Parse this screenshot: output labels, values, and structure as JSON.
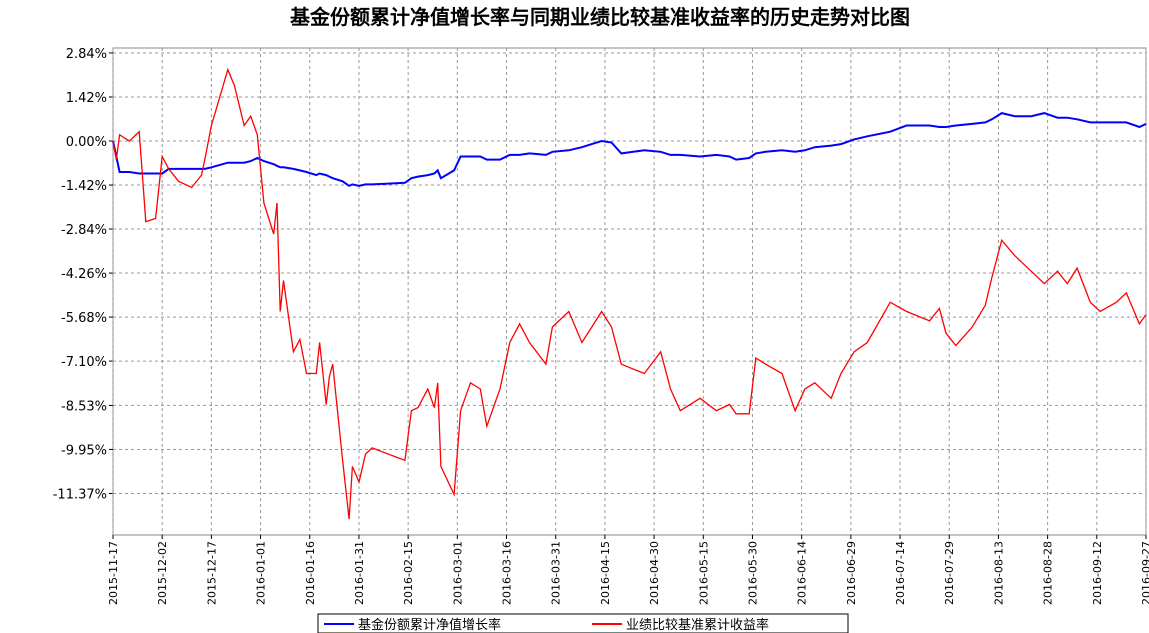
{
  "chart_data": {
    "type": "line",
    "title": "基金份额累计净值增长率与同期业绩比较基准收益率的历史走势对比图",
    "x": [
      "2015-11-17",
      "2015-11-18",
      "2015-11-19",
      "2015-11-22",
      "2015-11-25",
      "2015-11-27",
      "2015-11-30",
      "2015-12-02",
      "2015-12-04",
      "2015-12-07",
      "2015-12-11",
      "2015-12-14",
      "2015-12-15",
      "2015-12-17",
      "2015-12-22",
      "2015-12-24",
      "2015-12-27",
      "2015-12-29",
      "2015-12-31",
      "2016-01-02",
      "2016-01-05",
      "2016-01-06",
      "2016-01-07",
      "2016-01-08",
      "2016-01-11",
      "2016-01-13",
      "2016-01-15",
      "2016-01-18",
      "2016-01-19",
      "2016-01-21",
      "2016-01-22",
      "2016-01-23",
      "2016-01-26",
      "2016-01-28",
      "2016-01-29",
      "2016-01-31",
      "2016-02-02",
      "2016-02-04",
      "2016-02-14",
      "2016-02-16",
      "2016-02-18",
      "2016-02-21",
      "2016-02-23",
      "2016-02-24",
      "2016-02-25",
      "2016-02-29",
      "2016-03-02",
      "2016-03-05",
      "2016-03-08",
      "2016-03-10",
      "2016-03-14",
      "2016-03-17",
      "2016-03-20",
      "2016-03-23",
      "2016-03-28",
      "2016-03-30",
      "2016-04-04",
      "2016-04-08",
      "2016-04-11",
      "2016-04-14",
      "2016-04-17",
      "2016-04-20",
      "2016-04-27",
      "2016-05-02",
      "2016-05-05",
      "2016-05-08",
      "2016-05-14",
      "2016-05-19",
      "2016-05-23",
      "2016-05-25",
      "2016-05-29",
      "2016-05-31",
      "2016-06-03",
      "2016-06-08",
      "2016-06-12",
      "2016-06-15",
      "2016-06-18",
      "2016-06-23",
      "2016-06-26",
      "2016-06-30",
      "2016-07-04",
      "2016-07-11",
      "2016-07-16",
      "2016-07-23",
      "2016-07-26",
      "2016-07-28",
      "2016-07-31",
      "2016-08-05",
      "2016-08-09",
      "2016-08-11",
      "2016-08-14",
      "2016-08-18",
      "2016-08-23",
      "2016-08-27",
      "2016-08-31",
      "2016-09-03",
      "2016-09-06",
      "2016-09-10",
      "2016-09-13",
      "2016-09-18",
      "2016-09-21",
      "2016-09-25",
      "2016-09-27"
    ],
    "series": [
      {
        "name": "基金份额累计净值增长率",
        "color": "#0000ff",
        "values": [
          0,
          -0.5,
          -1.0,
          -1.0,
          -1.05,
          -1.05,
          -1.05,
          -1.05,
          -0.9,
          -0.9,
          -0.9,
          -0.9,
          -0.9,
          -0.85,
          -0.7,
          -0.7,
          -0.7,
          -0.65,
          -0.55,
          -0.65,
          -0.75,
          -0.8,
          -0.85,
          -0.85,
          -0.9,
          -0.95,
          -1.0,
          -1.1,
          -1.05,
          -1.1,
          -1.15,
          -1.2,
          -1.3,
          -1.45,
          -1.4,
          -1.45,
          -1.4,
          -1.4,
          -1.35,
          -1.2,
          -1.15,
          -1.1,
          -1.05,
          -0.95,
          -1.2,
          -0.95,
          -0.5,
          -0.5,
          -0.5,
          -0.6,
          -0.6,
          -0.45,
          -0.45,
          -0.4,
          -0.45,
          -0.35,
          -0.3,
          -0.2,
          -0.1,
          0,
          -0.05,
          -0.4,
          -0.3,
          -0.35,
          -0.45,
          -0.45,
          -0.5,
          -0.45,
          -0.5,
          -0.6,
          -0.55,
          -0.4,
          -0.35,
          -0.3,
          -0.35,
          -0.3,
          -0.2,
          -0.15,
          -0.1,
          0.05,
          0.15,
          0.3,
          0.5,
          0.5,
          0.45,
          0.45,
          0.5,
          0.55,
          0.6,
          0.7,
          0.9,
          0.8,
          0.8,
          0.9,
          0.75,
          0.75,
          0.7,
          0.6,
          0.6,
          0.6,
          0.6,
          0.45,
          0.55
        ]
      },
      {
        "name": "业绩比较基准累计收益率",
        "color": "#ff0000",
        "values": [
          0,
          -0.6,
          0.2,
          0,
          0.3,
          -2.6,
          -2.5,
          -0.5,
          -0.9,
          -1.3,
          -1.5,
          -1.1,
          -0.6,
          0.5,
          2.3,
          1.8,
          0.5,
          0.8,
          0.2,
          -2.0,
          -3.0,
          -2.0,
          -5.5,
          -4.5,
          -6.8,
          -6.4,
          -7.5,
          -7.5,
          -6.5,
          -8.5,
          -7.6,
          -7.2,
          -10.3,
          -12.2,
          -10.5,
          -11.0,
          -10.1,
          -9.9,
          -10.3,
          -8.7,
          -8.6,
          -8.0,
          -8.6,
          -7.8,
          -10.5,
          -11.4,
          -8.7,
          -7.8,
          -8.0,
          -9.2,
          -8.0,
          -6.5,
          -5.9,
          -6.5,
          -7.2,
          -6.0,
          -5.5,
          -6.5,
          -6.0,
          -5.5,
          -6.0,
          -7.2,
          -7.5,
          -6.8,
          -8.0,
          -8.7,
          -8.3,
          -8.7,
          -8.5,
          -8.8,
          -8.8,
          -7.0,
          -7.2,
          -7.5,
          -8.7,
          -8.0,
          -7.8,
          -8.3,
          -7.5,
          -6.8,
          -6.5,
          -5.2,
          -5.5,
          -5.8,
          -5.4,
          -6.2,
          -6.6,
          -6.0,
          -5.3,
          -4.4,
          -3.2,
          -3.7,
          -4.2,
          -4.6,
          -4.2,
          -4.6,
          -4.1,
          -5.2,
          -5.5,
          -5.2,
          -4.9,
          -5.9,
          -5.6
        ]
      }
    ],
    "xlim": [
      "2015-11-17",
      "2016-09-27"
    ],
    "xticks": [
      "2015-11-17",
      "2015-12-02",
      "2015-12-17",
      "2016-01-01",
      "2016-01-16",
      "2016-01-31",
      "2016-02-15",
      "2016-03-01",
      "2016-03-16",
      "2016-03-31",
      "2016-04-15",
      "2016-04-30",
      "2016-05-15",
      "2016-05-30",
      "2016-06-14",
      "2016-06-29",
      "2016-07-14",
      "2016-07-29",
      "2016-08-13",
      "2016-08-28",
      "2016-09-12",
      "2016-09-27"
    ],
    "ylim": [
      -12.71,
      3.0
    ],
    "yticks": [
      {
        "value": 2.84,
        "label": "2.84%"
      },
      {
        "value": 1.42,
        "label": "1.42%"
      },
      {
        "value": 0,
        "label": "0.00%"
      },
      {
        "value": -1.42,
        "label": "-1.42%"
      },
      {
        "value": -2.84,
        "label": "-2.84%"
      },
      {
        "value": -4.26,
        "label": "-4.26%"
      },
      {
        "value": -5.68,
        "label": "-5.68%"
      },
      {
        "value": -7.1,
        "label": "-7.10%"
      },
      {
        "value": -8.53,
        "label": "-8.53%"
      },
      {
        "value": -9.95,
        "label": "-9.95%"
      },
      {
        "value": -11.37,
        "label": "-11.37%"
      }
    ],
    "grid": true
  }
}
